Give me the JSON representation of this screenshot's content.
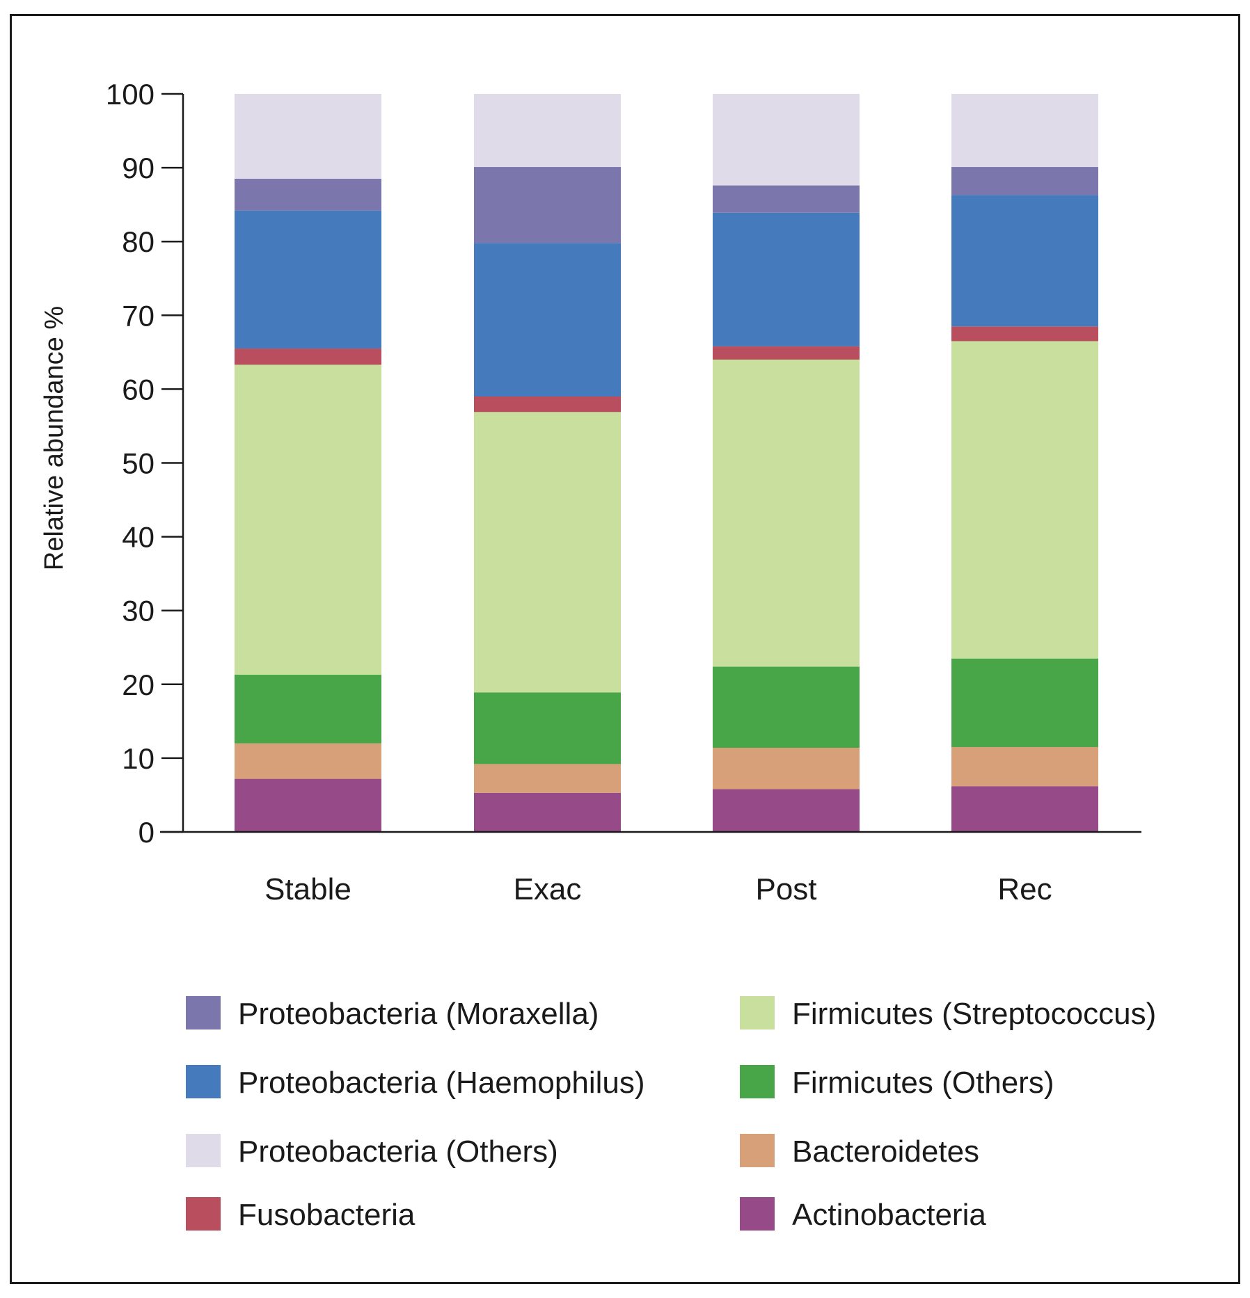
{
  "chart_data": {
    "type": "bar",
    "stacked": true,
    "title": "",
    "xlabel": "",
    "ylabel": "Relative abundance %",
    "ylim": [
      0,
      100
    ],
    "yticks": [
      0,
      10,
      20,
      30,
      40,
      50,
      60,
      70,
      80,
      90,
      100
    ],
    "grid": false,
    "legend_position": "bottom",
    "categories": [
      "Stable",
      "Exac",
      "Post",
      "Rec"
    ],
    "series": [
      {
        "name": "Actinobacteria",
        "color": "#964a87",
        "values": [
          7.2,
          5.3,
          5.8,
          6.2
        ]
      },
      {
        "name": "Bacteroidetes",
        "color": "#d8a079",
        "values": [
          4.8,
          3.9,
          5.6,
          5.3
        ]
      },
      {
        "name": "Firmicutes (Others)",
        "color": "#48a648",
        "values": [
          9.3,
          9.7,
          11.0,
          12.0
        ]
      },
      {
        "name": "Firmicutes (Streptococcus)",
        "color": "#c8df9e",
        "values": [
          42.0,
          38.0,
          41.6,
          43.0
        ]
      },
      {
        "name": "Fusobacteria",
        "color": "#b94f5e",
        "values": [
          2.2,
          2.1,
          1.8,
          2.0
        ]
      },
      {
        "name": "Proteobacteria (Haemophilus)",
        "color": "#457bbd",
        "values": [
          18.7,
          20.8,
          18.1,
          17.8
        ]
      },
      {
        "name": "Proteobacteria (Moraxella)",
        "color": "#7b77ad",
        "values": [
          4.3,
          10.3,
          3.7,
          3.8
        ]
      },
      {
        "name": "Proteobacteria (Others)",
        "color": "#e0dbe8",
        "values": [
          11.5,
          9.9,
          12.4,
          9.9
        ]
      }
    ],
    "legend": [
      {
        "label": "Proteobacteria (Moraxella)",
        "color": "#7b77ad"
      },
      {
        "label": "Firmicutes (Streptococcus)",
        "color": "#c8df9e"
      },
      {
        "label": "Proteobacteria (Haemophilus)",
        "color": "#457bbd"
      },
      {
        "label": "Firmicutes (Others)",
        "color": "#48a648"
      },
      {
        "label": "Proteobacteria (Others)",
        "color": "#e0dbe8"
      },
      {
        "label": "Bacteroidetes",
        "color": "#d8a079"
      },
      {
        "label": "Fusobacteria",
        "color": "#b94f5e"
      },
      {
        "label": "Actinobacteria",
        "color": "#964a87"
      }
    ]
  }
}
